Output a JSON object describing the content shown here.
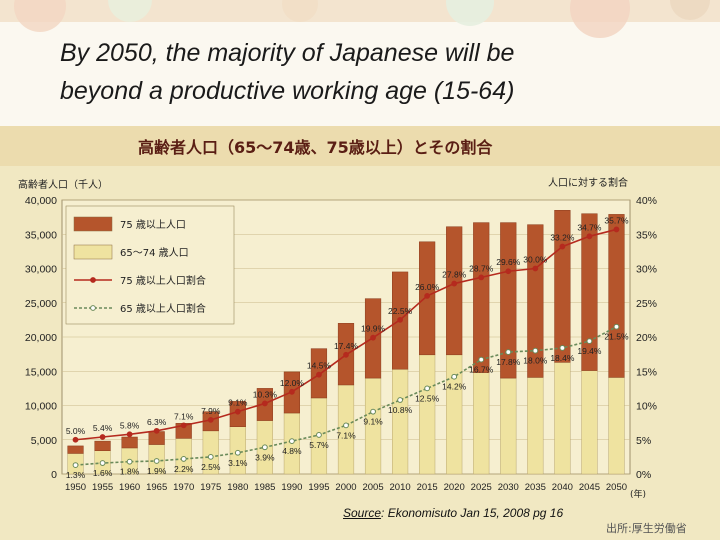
{
  "slide": {
    "title_line1": "By 2050, the majority of Japanese will be",
    "title_line2": "beyond a productive working age (15-64)",
    "source_label": "Source",
    "source_text": ": Ekonomisuto Jan 15, 2008 pg 16",
    "credit": "出所:厚生労働省"
  },
  "colors": {
    "bar_75plus": "#b5552c",
    "bar_65to74": "#efe3a0",
    "line_75plus_share": "#b52a1e",
    "line_65plus_share": "#6a8a5a",
    "chart_title": "#5a1e14",
    "chart_bg": "#f0e7bf"
  },
  "chart_data": {
    "type": "bar",
    "title": "高齢者人口（65～74歳、75歳以上）とその割合",
    "ylabel_left": "高齢者人口（千人）",
    "ylabel_right": "人口に対する割合",
    "xunit": "(年)",
    "ylim": [
      0,
      40000
    ],
    "ylim_right": [
      0,
      40
    ],
    "yticks_left": [
      "0",
      "5,000",
      "10,000",
      "15,000",
      "20,000",
      "25,000",
      "30,000",
      "35,000",
      "40,000"
    ],
    "yticks_right": [
      "0%",
      "5%",
      "10%",
      "15%",
      "20%",
      "25%",
      "30%",
      "35%",
      "40%"
    ],
    "categories": [
      "1950",
      "1955",
      "1960",
      "1965",
      "1970",
      "1975",
      "1980",
      "1985",
      "1990",
      "1995",
      "2000",
      "2005",
      "2010",
      "2015",
      "2020",
      "2025",
      "2030",
      "2035",
      "2040",
      "2045",
      "2050"
    ],
    "series": [
      {
        "name": "75 歳以上人口",
        "kind": "bar",
        "values": [
          1100,
          1400,
          1600,
          1900,
          2200,
          2800,
          3700,
          4700,
          6000,
          7200,
          9000,
          11600,
          14200,
          16500,
          18700,
          21900,
          22700,
          22300,
          22200,
          22900,
          23800
        ]
      },
      {
        "name": "65～74 歳人口",
        "kind": "bar",
        "values": [
          3000,
          3400,
          3800,
          4300,
          5200,
          6300,
          6900,
          7800,
          8900,
          11100,
          13000,
          14000,
          15300,
          17400,
          17400,
          14800,
          14000,
          14100,
          16300,
          15100,
          14100
        ]
      },
      {
        "name": "75 歳以上人口割合",
        "kind": "line",
        "values": [
          1.3,
          1.6,
          1.8,
          1.9,
          2.2,
          2.5,
          3.1,
          3.9,
          4.8,
          5.7,
          7.1,
          9.1,
          10.8,
          12.5,
          14.2,
          16.7,
          17.8,
          18.0,
          18.4,
          19.4,
          21.5
        ]
      },
      {
        "name": "65 歳以上人口割合",
        "kind": "line",
        "values": [
          5.0,
          5.4,
          5.8,
          6.3,
          7.1,
          7.9,
          9.1,
          10.3,
          12.0,
          14.5,
          17.4,
          19.9,
          22.5,
          26.0,
          27.8,
          28.7,
          29.6,
          30.0,
          33.2,
          34.7,
          35.7
        ]
      }
    ],
    "labels_65plus": [
      "5.0%",
      "5.4%",
      "5.8%",
      "6.3%",
      "7.1%",
      "7.9%",
      "9.1%",
      "10.3%",
      "12.0%",
      "14.5%",
      "17.4%",
      "19.9%",
      "22.5%",
      "26.0%",
      "27.8%",
      "28.7%",
      "29.6%",
      "30.0%",
      "33.2%",
      "34.7%",
      "35.7%"
    ],
    "labels_75plus": [
      "1.3%",
      "1.6%",
      "1.8%",
      "1.9%",
      "2.2%",
      "2.5%",
      "3.1%",
      "3.9%",
      "4.8%",
      "5.7%",
      "7.1%",
      "9.1%",
      "10.8%",
      "12.5%",
      "14.2%",
      "16.7%",
      "17.8%",
      "18.0%",
      "18.4%",
      "19.4%",
      "21.5%"
    ],
    "legend": [
      "75 歳以上人口",
      "65～74 歳人口",
      "75 歳以上人口割合",
      "65 歳以上人口割合"
    ],
    "legend_position": "top-left",
    "grid": true
  }
}
